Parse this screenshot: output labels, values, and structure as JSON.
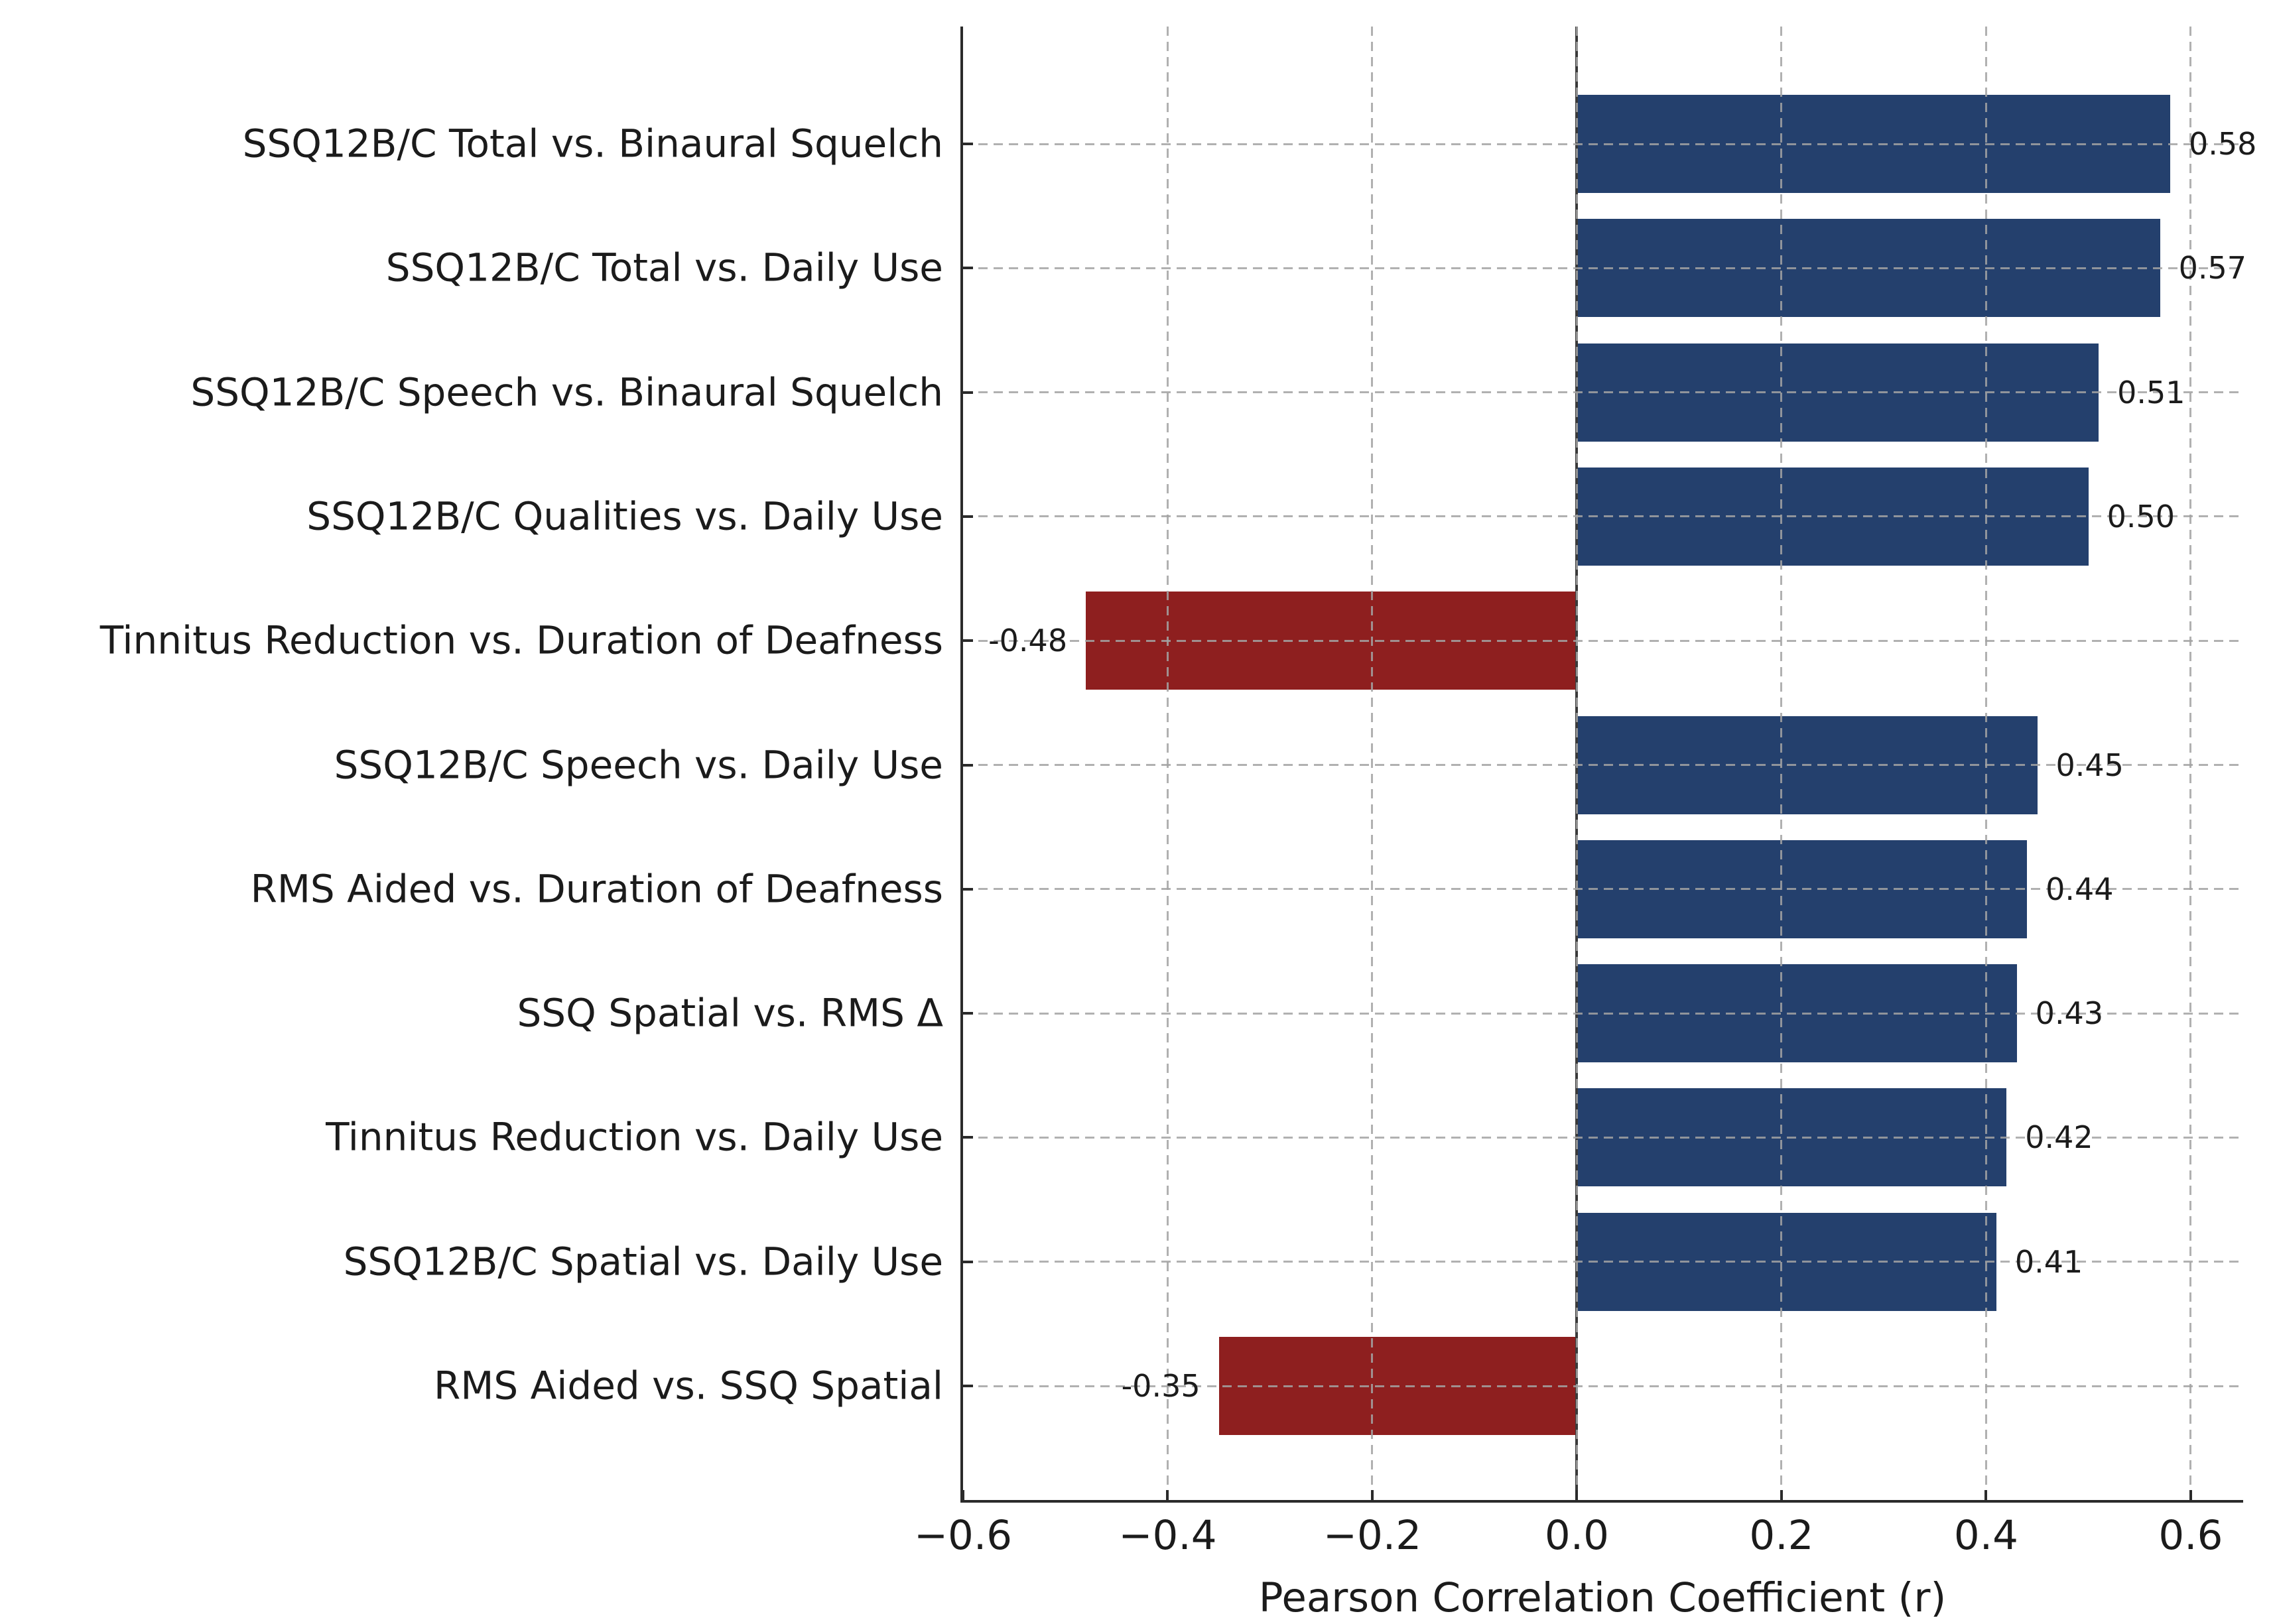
{
  "figure": {
    "background": "#ffffff"
  },
  "chart_data": {
    "type": "bar",
    "orientation": "horizontal",
    "title": "",
    "xlabel": "Pearson Correlation Coefficient (r)",
    "categories": [
      "SSQ12B/C Total vs. Binaural Squelch",
      "SSQ12B/C Total vs. Daily Use",
      "SSQ12B/C Speech vs. Binaural Squelch",
      "SSQ12B/C Qualities vs. Daily Use",
      "Tinnitus Reduction vs. Duration of Deafness",
      "SSQ12B/C Speech vs. Daily Use",
      "RMS Aided vs. Duration of Deafness",
      "SSQ Spatial vs. RMS Δ",
      "Tinnitus Reduction vs. Daily Use",
      "SSQ12B/C Spatial vs. Daily Use",
      "RMS Aided vs. SSQ Spatial"
    ],
    "values": [
      0.58,
      0.57,
      0.51,
      0.5,
      -0.48,
      0.45,
      0.44,
      0.43,
      0.42,
      0.41,
      -0.35
    ],
    "bar_labels": [
      "0.58",
      "0.57",
      "0.51",
      "0.50",
      "-0.48",
      "0.45",
      "0.44",
      "0.43",
      "0.42",
      "0.41",
      "-0.35"
    ],
    "xlim": [
      -0.6,
      0.65
    ],
    "xtick_values": [
      -0.6,
      -0.4,
      -0.2,
      0.0,
      0.2,
      0.4,
      0.6
    ],
    "xtick_labels": [
      "−0.6",
      "−0.4",
      "−0.2",
      "0.0",
      "0.2",
      "0.4",
      "0.6"
    ],
    "colors": {
      "positive_bar": "#24406D",
      "negative_bar": "#8E1F1F",
      "gridline": "#b3b3b3",
      "zero_line": "#3a3a3a",
      "spine": "#2b2b2b",
      "text": "#1b1b1b"
    },
    "grid": {
      "x": true,
      "y": true,
      "style": "dashed",
      "drawn_over_bars": true
    },
    "zero_line": true,
    "legend": null
  }
}
